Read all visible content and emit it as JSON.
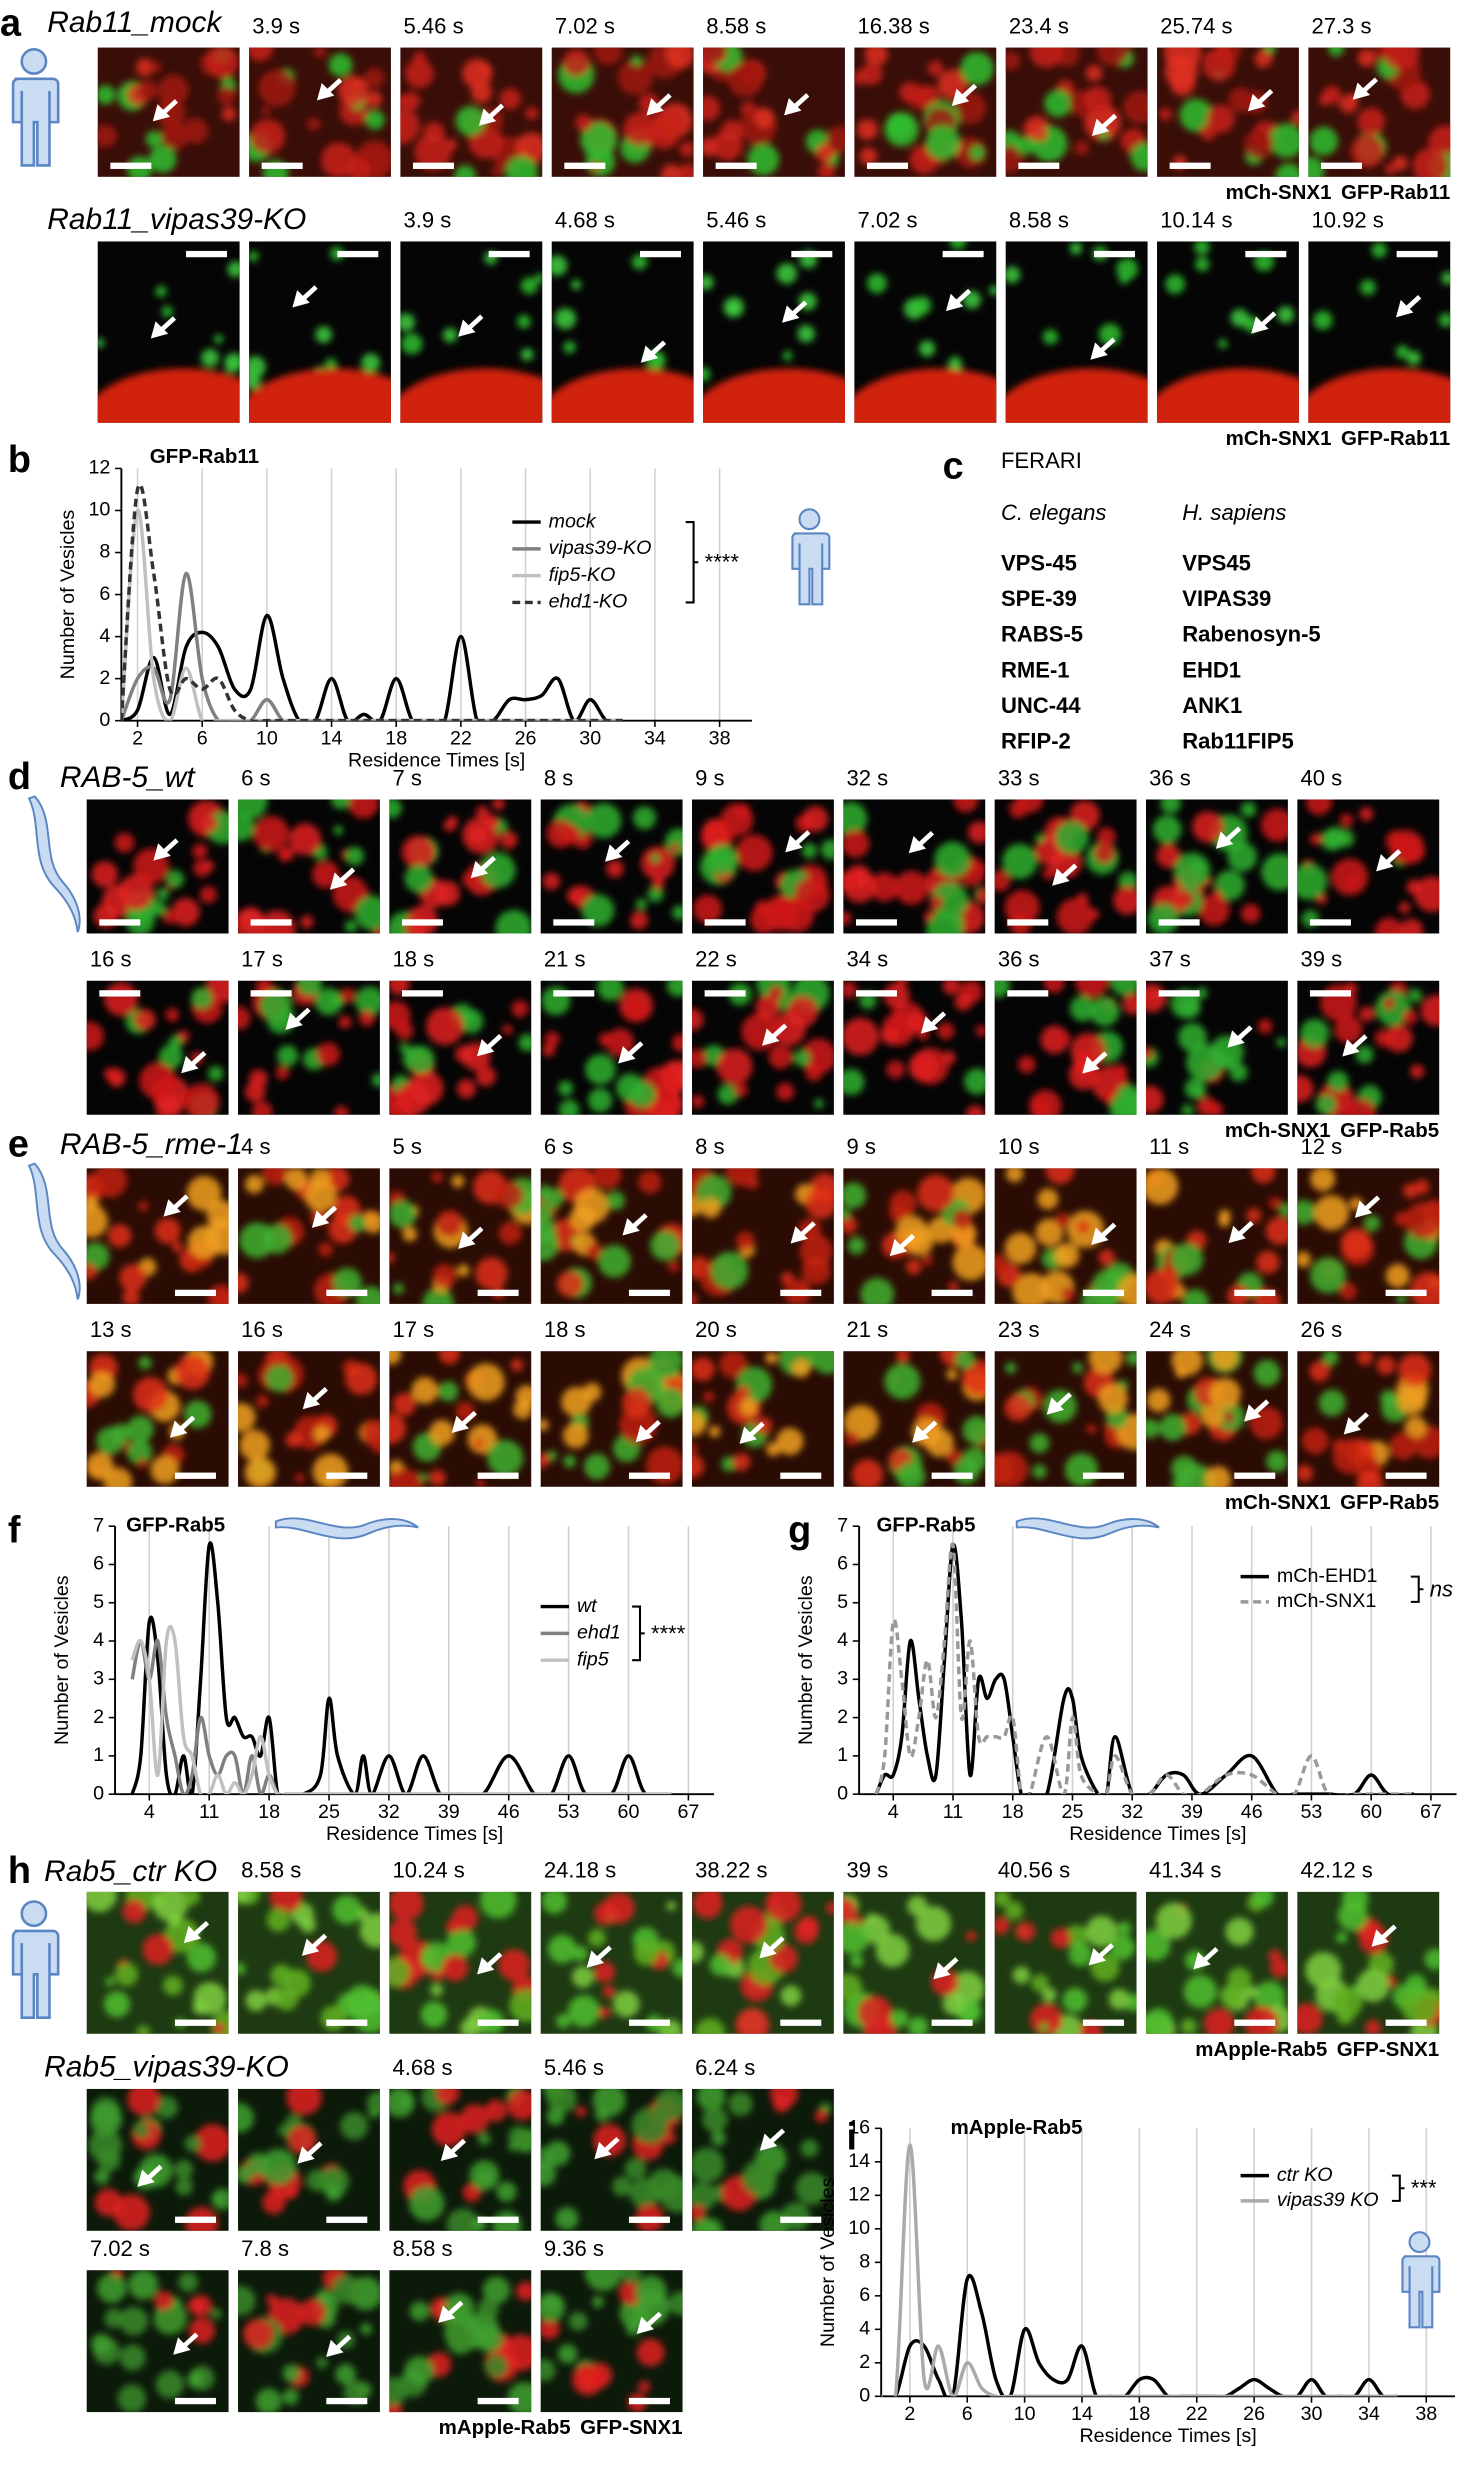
{
  "panels": [
    {
      "label": "a",
      "rows": [
        {
          "title": "Rab11_mock",
          "times": [
            "3.9 s",
            "5.46 s",
            "7.02 s",
            "8.58 s",
            "16.38 s",
            "23.4 s",
            "25.74 s",
            "27.3 s"
          ]
        },
        {
          "title": "Rab11_vipas39-KO",
          "times": [
            "3.9 s",
            "4.68 s",
            "5.46 s",
            "7.02 s",
            "8.58 s",
            "10.14 s",
            "10.92 s"
          ]
        }
      ],
      "legend": [
        "mCh-SNX1",
        "GFP-Rab11"
      ]
    },
    {
      "label": "d",
      "rows": [
        {
          "title": "RAB-5_wt",
          "times": [
            "6 s",
            "7 s",
            "8 s",
            "9 s",
            "32 s",
            "33 s",
            "36 s",
            "40 s"
          ]
        },
        {
          "times": [
            "16 s",
            "17 s",
            "18 s",
            "21 s",
            "22 s",
            "34 s",
            "36 s",
            "37 s",
            "39 s"
          ]
        }
      ],
      "legend": [
        "mCh-SNX1",
        "GFP-Rab5"
      ]
    },
    {
      "label": "e",
      "rows": [
        {
          "title": "RAB-5_rme-1",
          "times": [
            "4 s",
            "5 s",
            "6 s",
            "8 s",
            "9 s",
            "10 s",
            "11 s",
            "12 s"
          ]
        },
        {
          "times": [
            "13 s",
            "16 s",
            "17 s",
            "18 s",
            "20 s",
            "21 s",
            "23 s",
            "24 s",
            "26 s"
          ]
        }
      ],
      "legend": [
        "mCh-SNX1",
        "GFP-Rab5"
      ]
    },
    {
      "label": "h",
      "rows": [
        {
          "title": "Rab5_ctr KO",
          "times": [
            "8.58 s",
            "10.24 s",
            "24.18 s",
            "38.22 s",
            "39 s",
            "40.56 s",
            "41.34 s",
            "42.12 s"
          ]
        },
        {
          "title": "Rab5_vipas39-KO",
          "times": [
            "4.68 s",
            "5.46 s",
            "6.24 s"
          ]
        },
        {
          "times": [
            "7.02 s",
            "7.8 s",
            "8.58 s",
            "9.36 s"
          ]
        }
      ],
      "legend": [
        "mApple-Rab5",
        "GFP-SNX1"
      ]
    }
  ],
  "table": {
    "label": "c",
    "title": "FERARI",
    "columns": [
      "C. elegans",
      "H. sapiens"
    ],
    "rows": [
      [
        "VPS-45",
        "VPS45"
      ],
      [
        "SPE-39",
        "VIPAS39"
      ],
      [
        "RABS-5",
        "Rabenosyn-5"
      ],
      [
        "RME-1",
        "EHD1"
      ],
      [
        "UNC-44",
        "ANK1"
      ],
      [
        "RFIP-2",
        "Rab11FIP5"
      ]
    ]
  },
  "chart_data": [
    {
      "type": "line",
      "panel": "b",
      "title": "GFP-Rab11",
      "x_label": "Residence Times [s]",
      "y_label": "Number of Vesicles",
      "x": [
        1,
        2,
        3,
        4,
        5,
        6,
        7,
        8,
        9,
        10,
        11,
        12,
        13,
        14,
        15,
        16,
        17,
        18,
        19,
        20,
        21,
        22,
        23,
        24,
        25,
        26,
        27,
        28,
        29,
        30,
        31,
        32
      ],
      "series": [
        {
          "name": "mock",
          "color": "#000000",
          "dash": false,
          "values": [
            0,
            0.5,
            3,
            0.3,
            3.5,
            4.2,
            3.5,
            1.5,
            1.5,
            5,
            2,
            0,
            0,
            2,
            0,
            0.3,
            0,
            2,
            0,
            0,
            0,
            4,
            0,
            0,
            1,
            1,
            1.2,
            2,
            0,
            1,
            0,
            0
          ]
        },
        {
          "name": "vipas39-KO",
          "color": "#808080",
          "dash": false,
          "values": [
            0,
            2,
            2.5,
            1,
            7,
            2,
            0,
            0,
            0,
            1,
            0,
            0,
            0,
            0,
            0,
            0,
            0,
            0,
            0,
            0,
            0,
            0,
            0,
            0,
            0,
            0,
            0,
            0,
            0,
            0,
            0,
            0
          ]
        },
        {
          "name": "fip5-KO",
          "color": "#c0c0c0",
          "dash": false,
          "values": [
            0,
            10,
            2,
            0,
            2.5,
            0,
            0,
            0,
            0,
            0,
            0,
            0,
            0,
            0,
            0,
            0,
            0,
            0,
            0,
            0,
            0,
            0,
            0,
            0,
            0,
            0,
            0,
            0,
            0,
            0,
            0,
            0
          ]
        },
        {
          "name": "ehd1-KO",
          "color": "#333333",
          "dash": true,
          "values": [
            0,
            11,
            7,
            1.5,
            2,
            1.5,
            2,
            0.5,
            0,
            0,
            0,
            0,
            0,
            0,
            0,
            0,
            0,
            0,
            0,
            0,
            0,
            0,
            0,
            0,
            0,
            0,
            0,
            0,
            0,
            0,
            0,
            0
          ]
        }
      ],
      "significance": "****",
      "xlim": [
        1,
        40
      ],
      "ylim": [
        0,
        12
      ],
      "xticks": [
        2,
        6,
        10,
        14,
        18,
        22,
        26,
        30,
        34,
        38
      ],
      "yticks": [
        0,
        2,
        4,
        6,
        8,
        10,
        12
      ],
      "grid": "x"
    },
    {
      "type": "line",
      "panel": "f",
      "title": "GFP-Rab5",
      "x_label": "Residence Times [s]",
      "y_label": "Number of Vesicles",
      "x": [
        2,
        3,
        4,
        5,
        6,
        7,
        8,
        9,
        10,
        11,
        12,
        13,
        14,
        15,
        16,
        17,
        18,
        19,
        20,
        22,
        24,
        25,
        26,
        28,
        29,
        30,
        32,
        34,
        36,
        38,
        40,
        43,
        46,
        49,
        51,
        53,
        55,
        58,
        60,
        62,
        65
      ],
      "series": [
        {
          "name": "wt",
          "color": "#000000",
          "dash": false,
          "values": [
            0,
            1,
            4.5,
            3.5,
            0.5,
            0,
            1,
            0,
            3,
            6.5,
            5,
            2,
            2,
            1.5,
            1.5,
            1,
            2,
            0,
            0,
            0,
            0.5,
            2.5,
            1,
            0,
            1,
            0,
            1,
            0,
            1,
            0,
            0,
            0,
            1,
            0,
            0,
            1,
            0,
            0,
            1,
            0,
            0
          ]
        },
        {
          "name": "ehd1",
          "color": "#808080",
          "dash": false,
          "values": [
            3,
            4,
            3,
            4,
            2,
            1,
            0,
            0.5,
            2,
            1,
            0.5,
            1,
            1,
            0,
            1,
            0,
            0.5,
            0,
            0,
            0,
            0,
            0,
            0,
            0,
            0,
            0,
            0,
            0,
            0,
            0,
            0,
            0,
            0,
            0,
            0,
            0,
            0,
            0,
            0,
            0,
            0
          ]
        },
        {
          "name": "fip5",
          "color": "#c0c0c0",
          "dash": false,
          "values": [
            3.5,
            4,
            3,
            0.5,
            4,
            4,
            1.5,
            1,
            0,
            0,
            0.5,
            0,
            0.3,
            0,
            0.5,
            1.5,
            0.5,
            0,
            0,
            0,
            0,
            0,
            0,
            0,
            0,
            0,
            0,
            0,
            0,
            0,
            0,
            0,
            0,
            0,
            0,
            0,
            0,
            0,
            0,
            0,
            0
          ]
        }
      ],
      "significance": "****",
      "xlim": [
        0,
        70
      ],
      "ylim": [
        0,
        7
      ],
      "xticks": [
        4,
        11,
        18,
        25,
        32,
        39,
        46,
        53,
        60,
        67
      ],
      "yticks": [
        0,
        1,
        2,
        3,
        4,
        5,
        6,
        7
      ],
      "grid": "x"
    },
    {
      "type": "line",
      "panel": "g",
      "title": "GFP-Rab5",
      "x_label": "Residence Times [s]",
      "y_label": "Number of Vesicles",
      "x": [
        2,
        3,
        4,
        5,
        6,
        7,
        8,
        9,
        10,
        11,
        12,
        13,
        14,
        15,
        16,
        17,
        18,
        19,
        20,
        22,
        24,
        25,
        26,
        28,
        29,
        30,
        32,
        34,
        36,
        38,
        40,
        43,
        46,
        49,
        51,
        53,
        55,
        58,
        60,
        62,
        65
      ],
      "series": [
        {
          "name": "mCh-EHD1",
          "color": "#000000",
          "dash": false,
          "values": [
            0,
            0.5,
            0.5,
            1.5,
            4,
            2.5,
            1,
            0.5,
            3.5,
            6.5,
            4.5,
            0.5,
            3,
            2.5,
            3,
            3,
            1.5,
            0,
            0,
            0,
            2.5,
            2.5,
            1,
            0,
            0,
            1.5,
            0,
            0,
            0.5,
            0.5,
            0,
            0.5,
            1,
            0,
            0,
            0,
            0,
            0,
            0.5,
            0,
            0
          ]
        },
        {
          "name": "mCh-SNX1",
          "color": "#999999",
          "dash": true,
          "values": [
            0,
            1,
            4.5,
            3,
            1,
            2,
            3.5,
            2,
            4,
            6.5,
            2,
            4,
            1.5,
            1.5,
            1.5,
            1.5,
            2,
            0,
            0,
            1.5,
            0,
            2,
            0.5,
            0,
            0,
            1,
            0,
            0,
            0.5,
            0,
            0,
            0.5,
            0.5,
            0,
            0,
            1,
            0,
            0,
            0,
            0,
            0
          ]
        }
      ],
      "significance": "ns",
      "xlim": [
        0,
        70
      ],
      "ylim": [
        0,
        7
      ],
      "xticks": [
        4,
        11,
        18,
        25,
        32,
        39,
        46,
        53,
        60,
        67
      ],
      "yticks": [
        0,
        1,
        2,
        3,
        4,
        5,
        6,
        7
      ],
      "grid": "x"
    },
    {
      "type": "line",
      "panel": "i",
      "title": "mApple-Rab5",
      "x_label": "Residence Times [s]",
      "y_label": "Number of Vesicles",
      "x": [
        0,
        1,
        2,
        3,
        4,
        5,
        6,
        7,
        8,
        9,
        10,
        11,
        12,
        13,
        14,
        15,
        16,
        17,
        18,
        19,
        20,
        21,
        22,
        23,
        24,
        25,
        26,
        27,
        28,
        29,
        30,
        31,
        32,
        33,
        34,
        35,
        36
      ],
      "series": [
        {
          "name": "ctr KO",
          "color": "#000000",
          "dash": false,
          "values": [
            0,
            0,
            3,
            3,
            1,
            0,
            7,
            5,
            1,
            0,
            4,
            2,
            1,
            1,
            3,
            0,
            0,
            0,
            1,
            1,
            0,
            0,
            0,
            0,
            0,
            0.5,
            1,
            0.5,
            0,
            0,
            1,
            0,
            0,
            0,
            1,
            0,
            0
          ]
        },
        {
          "name": "vipas39 KO",
          "color": "#aaaaaa",
          "dash": false,
          "values": [
            0,
            0,
            15,
            1,
            3,
            0,
            2,
            0.5,
            0,
            0,
            0,
            0,
            0,
            0,
            0,
            0,
            0,
            0,
            0,
            0,
            0,
            0,
            0,
            0,
            0,
            0,
            0,
            0,
            0,
            0,
            0,
            0,
            0,
            0,
            0,
            0,
            0
          ]
        }
      ],
      "significance": "***",
      "xlim": [
        0,
        40
      ],
      "ylim": [
        0,
        16
      ],
      "xticks": [
        2,
        6,
        10,
        14,
        18,
        22,
        26,
        30,
        34,
        38
      ],
      "yticks": [
        0,
        2,
        4,
        6,
        8,
        10,
        12,
        14,
        16
      ],
      "grid": "x"
    }
  ]
}
